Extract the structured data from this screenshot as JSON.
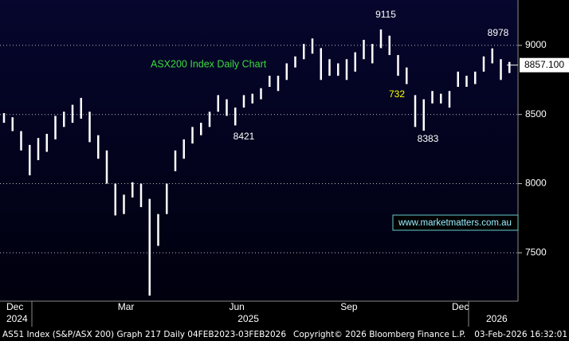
{
  "chart_data": {
    "type": "range-bar",
    "title": "ASX200 Index Daily Chart",
    "categories": [
      "Dec",
      null,
      null,
      null,
      null,
      null,
      null,
      null,
      null,
      null,
      null,
      null,
      null,
      "Mar",
      null,
      null,
      null,
      null,
      null,
      null,
      null,
      null,
      null,
      null,
      null,
      null,
      "Jun",
      null,
      null,
      null,
      null,
      null,
      null,
      null,
      null,
      null,
      null,
      null,
      null,
      "Sep",
      null,
      null,
      null,
      null,
      null,
      null,
      null,
      null,
      null,
      null,
      null,
      null,
      "Dec",
      null,
      null,
      null,
      null,
      null,
      null,
      null
    ],
    "years": [
      "2024",
      null,
      null,
      null,
      null,
      null,
      null,
      null,
      null,
      null,
      null,
      null,
      null,
      null,
      null,
      null,
      null,
      null,
      null,
      null,
      null,
      null,
      null,
      null,
      null,
      null,
      null,
      "2025",
      null,
      null,
      null,
      null,
      null,
      null,
      null,
      null,
      null,
      null,
      null,
      null,
      null,
      null,
      null,
      null,
      null,
      null,
      null,
      null,
      null,
      null,
      null,
      null,
      null,
      null,
      null,
      null,
      "2026",
      null,
      null,
      null
    ],
    "high": [
      8510,
      8480,
      8380,
      8280,
      8330,
      8360,
      8490,
      8520,
      8570,
      8620,
      8520,
      8350,
      8240,
      8000,
      7920,
      8010,
      8000,
      7890,
      7780,
      8000,
      8240,
      8320,
      8410,
      8440,
      8520,
      8640,
      8610,
      8550,
      8640,
      8650,
      8690,
      8780,
      8780,
      8870,
      8920,
      9010,
      9050,
      8980,
      8900,
      8870,
      8900,
      8950,
      9040,
      9010,
      9115,
      9070,
      8930,
      8840,
      8640,
      8610,
      8670,
      8650,
      8670,
      8810,
      8780,
      8810,
      8920,
      8978,
      8900,
      8880
    ],
    "low": [
      8440,
      8380,
      8240,
      8060,
      8170,
      8230,
      8320,
      8410,
      8440,
      8470,
      8300,
      8180,
      8000,
      7770,
      7780,
      7900,
      7830,
      7190,
      7550,
      7780,
      8090,
      8180,
      8290,
      8350,
      8410,
      8520,
      8490,
      8421,
      8550,
      8580,
      8610,
      8700,
      8670,
      8750,
      8840,
      8900,
      8940,
      8750,
      8780,
      8780,
      8750,
      8810,
      8900,
      8870,
      8980,
      8930,
      8780,
      8720,
      8410,
      8383,
      8580,
      8580,
      8550,
      8700,
      8700,
      8720,
      8810,
      8870,
      8750,
      8800
    ],
    "color": "#ffffff",
    "ylim": [
      7150,
      9328
    ],
    "yticks": [
      7500,
      8000,
      8500,
      9000
    ],
    "grid": true,
    "last_price": {
      "value": 8857.1,
      "label": "8857.100"
    },
    "annotations": [
      "9115",
      "8978",
      "8421",
      "8383",
      "732"
    ],
    "website": "www.marketmatters.com.au"
  },
  "footer": {
    "left": "AS51 Index (S&P/ASX 200) Graph 217 Daily 04FEB2023-03FEB2026",
    "middle": "Copyright© 2026 Bloomberg Finance L.P.",
    "right": "03-Feb-2026 16:32:01"
  }
}
